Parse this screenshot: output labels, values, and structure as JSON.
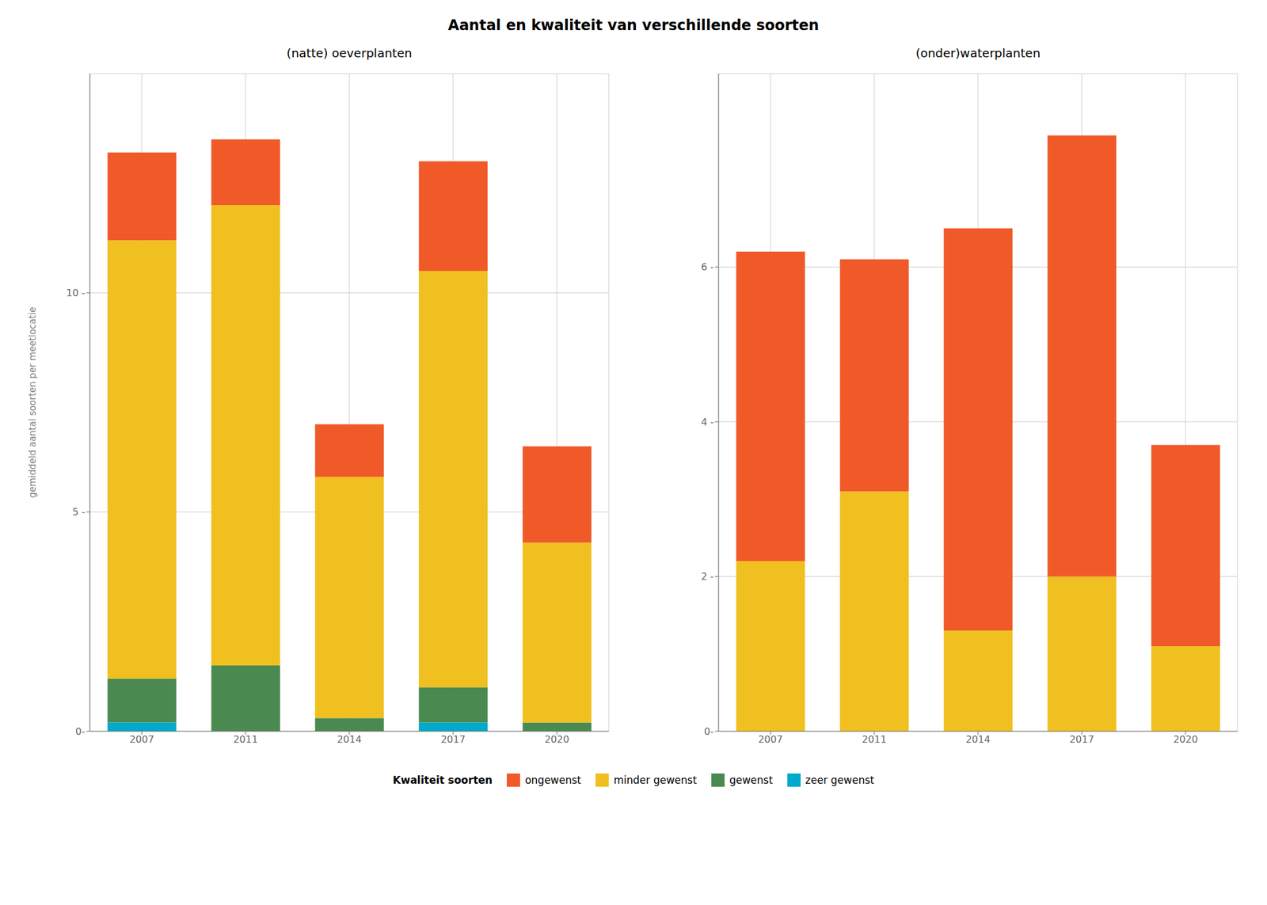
{
  "title": "Aantal en kwaliteit van verschillende soorten",
  "legend_title": "Kwaliteit soorten",
  "chart_data": [
    {
      "type": "bar",
      "subtitle": "(natte) oeverplanten",
      "ylabel": "gemiddeld aantal soorten per meetlocatie",
      "categories": [
        "2007",
        "2011",
        "2014",
        "2017",
        "2020"
      ],
      "stacked": true,
      "grid": true,
      "ylim": [
        0,
        15.0
      ],
      "yticks": [
        {
          "value": 0,
          "label": "0-"
        },
        {
          "value": 5,
          "label": "5 -"
        },
        {
          "value": 10,
          "label": "10 -"
        }
      ],
      "series": [
        {
          "name": "zeer gewenst",
          "color": "#00AACC",
          "values": [
            0.2,
            0.0,
            0.0,
            0.2,
            0.0
          ]
        },
        {
          "name": "gewenst",
          "color": "#4A8A50",
          "values": [
            1.0,
            1.5,
            0.3,
            0.8,
            0.2
          ]
        },
        {
          "name": "minder gewenst",
          "color": "#F0C020",
          "values": [
            10.0,
            10.5,
            5.5,
            9.5,
            4.1
          ]
        },
        {
          "name": "ongewenst",
          "color": "#F05A28",
          "values": [
            2.0,
            1.5,
            1.2,
            2.5,
            2.2
          ]
        }
      ]
    },
    {
      "type": "bar",
      "subtitle": "(onder)waterplanten",
      "categories": [
        "2007",
        "2011",
        "2014",
        "2017",
        "2020"
      ],
      "stacked": true,
      "grid": true,
      "ylim": [
        0,
        8.5
      ],
      "yticks": [
        {
          "value": 0,
          "label": "0-"
        },
        {
          "value": 2,
          "label": "2 -"
        },
        {
          "value": 4,
          "label": "4 -"
        },
        {
          "value": 6,
          "label": "6 -"
        }
      ],
      "series": [
        {
          "name": "zeer gewenst",
          "color": "#00AACC",
          "values": [
            0.0,
            0.0,
            0.0,
            0.0,
            0.0
          ]
        },
        {
          "name": "gewenst",
          "color": "#4A8A50",
          "values": [
            0.0,
            0.0,
            0.0,
            0.0,
            0.0
          ]
        },
        {
          "name": "minder gewenst",
          "color": "#F0C020",
          "values": [
            2.2,
            3.1,
            1.3,
            2.0,
            1.1
          ]
        },
        {
          "name": "ongewenst",
          "color": "#F05A28",
          "values": [
            4.0,
            3.0,
            5.2,
            5.7,
            2.6
          ]
        }
      ]
    }
  ]
}
